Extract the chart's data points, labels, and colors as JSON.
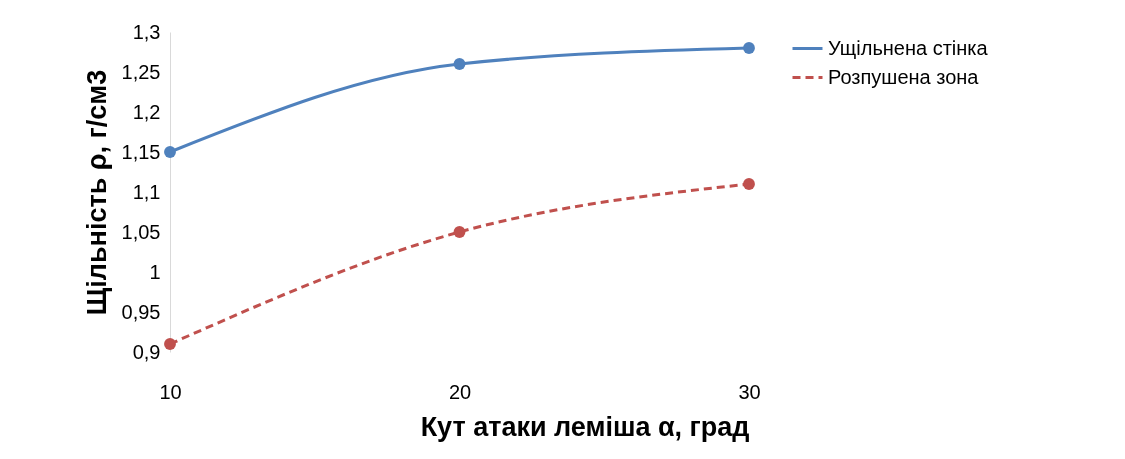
{
  "chart_data": {
    "type": "line",
    "xlabel": "Кут атаки леміша α, град",
    "ylabel": "Щільність ρ, г/см3",
    "x": [
      10,
      20,
      30
    ],
    "xlim": [
      10,
      30
    ],
    "xticks": [
      10,
      20,
      30
    ],
    "ylim": [
      0.9,
      1.3
    ],
    "yticks": [
      {
        "value": 0.9,
        "label": "0,9"
      },
      {
        "value": 0.95,
        "label": "0,95"
      },
      {
        "value": 1,
        "label": "1"
      },
      {
        "value": 1.05,
        "label": "1,05"
      },
      {
        "value": 1.1,
        "label": "1,1"
      },
      {
        "value": 1.15,
        "label": "1,15"
      },
      {
        "value": 1.2,
        "label": "1,2"
      },
      {
        "value": 1.25,
        "label": "1,25"
      },
      {
        "value": 1.3,
        "label": "1,3"
      }
    ],
    "series": [
      {
        "name": "Ущільнена стінка",
        "color": "#4f81bd",
        "values": [
          1.15,
          1.26,
          1.28
        ],
        "line_style": "solid"
      },
      {
        "name": "Розпушена зона",
        "color": "#c0504d",
        "values": [
          0.91,
          1.05,
          1.11
        ],
        "line_style": "dashed"
      }
    ],
    "marker": "circle",
    "legend": "right",
    "grid": false
  }
}
